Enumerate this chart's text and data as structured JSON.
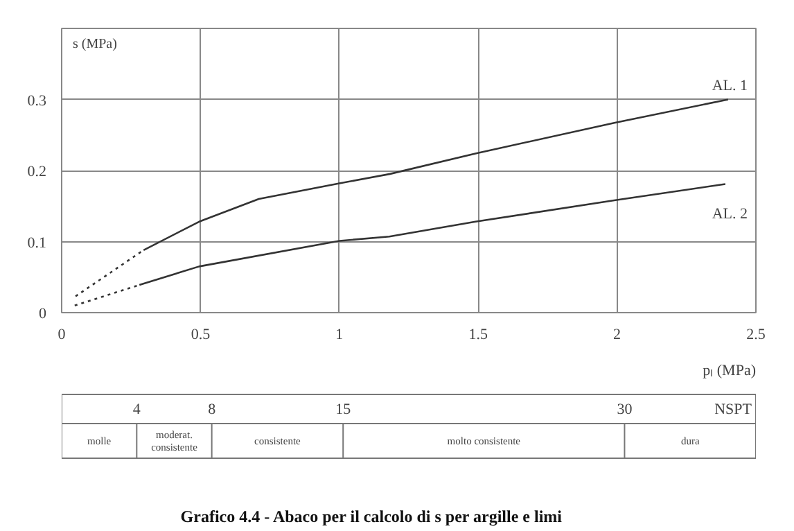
{
  "chart_data": {
    "type": "line",
    "title": "Grafico 4.4 -  Abaco per il calcolo di s per argille e limi",
    "xlabel": "pₗ (MPa)",
    "ylabel": "s (MPa)",
    "xlim": [
      0,
      2.5
    ],
    "ylim": [
      0,
      0.4
    ],
    "xticks": [
      0,
      0.5,
      1,
      1.5,
      2,
      2.5
    ],
    "yticks": [
      0,
      0.1,
      0.2,
      0.3
    ],
    "grid": true,
    "x2lim": [
      0,
      37
    ],
    "x2label": "NSPT",
    "x2ticks": [
      4,
      8,
      15,
      30
    ],
    "annotations": [
      "molle",
      "moderat.\nconsistente",
      "consistente",
      "molto consistente",
      "dura"
    ],
    "series": [
      {
        "color": "#333333",
        "line_style": "dotted",
        "x": [
          0.05,
          0.295
        ],
        "values": [
          0.023,
          0.088
        ]
      },
      {
        "name": "AL. 1",
        "color": "#333333",
        "line_style": "solid",
        "x": [
          0.295,
          0.495,
          0.71,
          1.0,
          1.18,
          1.49,
          1.99,
          2.4
        ],
        "values": [
          0.088,
          0.128,
          0.16,
          0.182,
          0.195,
          0.224,
          0.267,
          0.3
        ]
      },
      {
        "color": "#333333",
        "line_style": "dotted",
        "x": [
          0.047,
          0.28
        ],
        "values": [
          0.01,
          0.039
        ]
      },
      {
        "name": "AL. 2",
        "color": "#333333",
        "line_style": "solid",
        "x": [
          0.28,
          0.495,
          1.0,
          1.18,
          1.49,
          1.99,
          2.39
        ],
        "values": [
          0.039,
          0.065,
          0.101,
          0.107,
          0.128,
          0.158,
          0.181
        ]
      }
    ]
  }
}
